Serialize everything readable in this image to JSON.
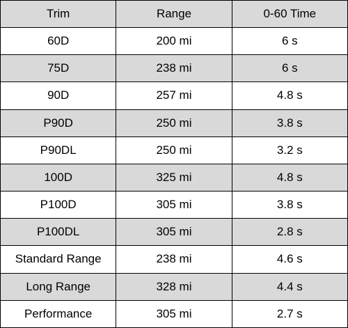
{
  "table": {
    "header": [
      "Trim",
      "Range",
      "0-60 Time"
    ],
    "rows": [
      [
        "60D",
        "200 mi",
        "6 s"
      ],
      [
        "75D",
        "238 mi",
        "6 s"
      ],
      [
        "90D",
        "257 mi",
        "4.8 s"
      ],
      [
        "P90D",
        "250 mi",
        "3.8 s"
      ],
      [
        "P90DL",
        "250 mi",
        "3.2 s"
      ],
      [
        "100D",
        "325 mi",
        "4.8 s"
      ],
      [
        "P100D",
        "305 mi",
        "3.8 s"
      ],
      [
        "P100DL",
        "305 mi",
        "2.8 s"
      ],
      [
        "Standard Range",
        "238 mi",
        "4.6 s"
      ],
      [
        "Long Range",
        "328 mi",
        "4.4 s"
      ],
      [
        "Performance",
        "305 mi",
        "2.7 s"
      ]
    ]
  }
}
